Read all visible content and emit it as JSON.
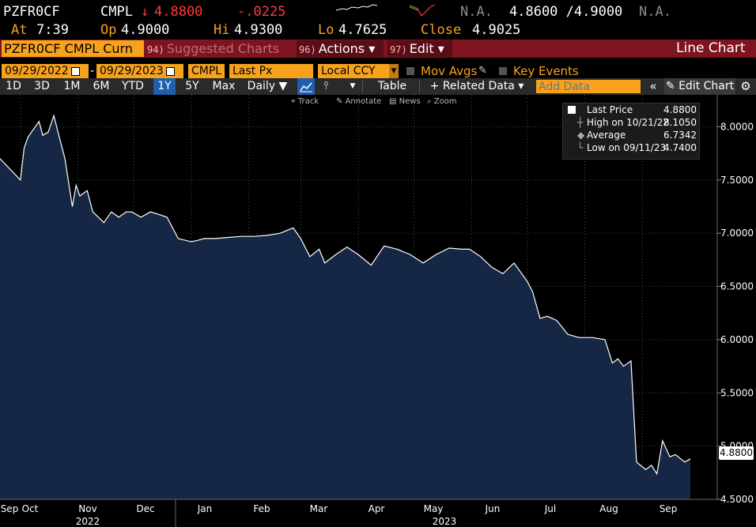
{
  "header": {
    "ticker": "PZFR0CF",
    "source": "CMPL",
    "arrow": "↓",
    "last": "4.8800",
    "change": "-.0225",
    "bid_na": "N.A.",
    "bid_ask": "4.8600 /4.9000",
    "ask_na": "N.A.",
    "at_label": "At",
    "at_time": "7:39",
    "op_label": "Op",
    "op_value": "4.9000",
    "hi_label": "Hi",
    "hi_value": "4.9300",
    "lo_label": "Lo",
    "lo_value": "4.7625",
    "close_label": "Close",
    "close_value": "4.9025"
  },
  "actionbar": {
    "security": "PZFR0CF CMPL Curn",
    "suggested_num": "94)",
    "suggested": "Suggested Charts",
    "actions_num": "96)",
    "actions": "Actions ▾",
    "edit_num": "97)",
    "edit": "Edit ▾",
    "title": "Line Chart"
  },
  "controls": {
    "start_date": "09/29/2022",
    "end_date": "09/29/2023",
    "source": "CMPL",
    "field": "Last Px",
    "currency": "Local CCY",
    "mov_avgs": "Mov Avgs",
    "key_events": "Key Events"
  },
  "toolbar": {
    "ranges": [
      "1D",
      "3D",
      "1M",
      "6M",
      "YTD",
      "1Y",
      "5Y",
      "Max"
    ],
    "selected_range": "1Y",
    "frequency": "Daily ▼",
    "table": "Table",
    "related": "+ Related Data ▾",
    "add_data_placeholder": "Add Data",
    "collapse": "«",
    "edit_chart": "✎ Edit Chart",
    "gear": "⚙"
  },
  "chart_tools": [
    "Track",
    "Annotate",
    "News",
    "Zoom"
  ],
  "legend": {
    "last_label": "Last Price",
    "last_value": "4.8800",
    "high_label": "High on 10/21/22",
    "high_value": "8.1050",
    "avg_label": "Average",
    "avg_value": "6.7342",
    "low_label": "Low on 09/11/23",
    "low_value": "4.7400"
  },
  "last_tag": "4.8800",
  "colors": {
    "background": "#000000",
    "area_fill": "#152744",
    "line": "#ffffff",
    "accent_orange": "#f7a21c",
    "down_red": "#ff3b3b",
    "bar_red": "#7d1420",
    "selected_blue": "#1f5fae"
  },
  "chart_data": {
    "type": "area",
    "title": "",
    "xlabel": "",
    "ylabel": "",
    "ylim": [
      4.5,
      8.3
    ],
    "y_ticks": [
      "8.0000",
      "7.5000",
      "7.0000",
      "6.5000",
      "6.0000",
      "5.5000",
      "5.0000",
      "4.5000"
    ],
    "x_ticks": [
      "Sep",
      "Oct",
      "Nov",
      "Dec",
      "Jan",
      "Feb",
      "Mar",
      "Apr",
      "May",
      "Jun",
      "Jul",
      "Aug",
      "Sep"
    ],
    "x_years": [
      "2022",
      "2023"
    ],
    "series": [
      {
        "name": "Last Price",
        "x": [
          "2022-09-29",
          "2022-10-03",
          "2022-10-05",
          "2022-10-07",
          "2022-10-11",
          "2022-10-13",
          "2022-10-15",
          "2022-10-18",
          "2022-10-21",
          "2022-10-24",
          "2022-10-27",
          "2022-10-31",
          "2022-11-02",
          "2022-11-04",
          "2022-11-08",
          "2022-11-11",
          "2022-11-14",
          "2022-11-17",
          "2022-11-21",
          "2022-11-25",
          "2022-11-29",
          "2022-12-02",
          "2022-12-07",
          "2022-12-12",
          "2022-12-16",
          "2022-12-21",
          "2022-12-27",
          "2023-01-03",
          "2023-01-06",
          "2023-01-10",
          "2023-01-16",
          "2023-01-23",
          "2023-01-30",
          "2023-02-06",
          "2023-02-13",
          "2023-02-20",
          "2023-02-27",
          "2023-03-03",
          "2023-03-08",
          "2023-03-13",
          "2023-03-16",
          "2023-03-22",
          "2023-03-28",
          "2023-04-03",
          "2023-04-10",
          "2023-04-17",
          "2023-04-24",
          "2023-05-01",
          "2023-05-08",
          "2023-05-15",
          "2023-05-22",
          "2023-05-29",
          "2023-06-02",
          "2023-06-08",
          "2023-06-14",
          "2023-06-20",
          "2023-06-26",
          "2023-07-03",
          "2023-07-06",
          "2023-07-10",
          "2023-07-14",
          "2023-07-19",
          "2023-07-25",
          "2023-07-31",
          "2023-08-07",
          "2023-08-14",
          "2023-08-18",
          "2023-08-21",
          "2023-08-24",
          "2023-08-28",
          "2023-08-31",
          "2023-09-05",
          "2023-09-08",
          "2023-09-11",
          "2023-09-14",
          "2023-09-18",
          "2023-09-21",
          "2023-09-26",
          "2023-09-29"
        ],
        "y": [
          7.7,
          7.5,
          7.8,
          7.9,
          8.0,
          8.05,
          7.92,
          7.95,
          8.105,
          7.9,
          7.7,
          7.25,
          7.45,
          7.35,
          7.4,
          7.2,
          7.15,
          7.1,
          7.2,
          7.15,
          7.2,
          7.2,
          7.15,
          7.2,
          7.18,
          7.15,
          6.95,
          6.92,
          6.93,
          6.95,
          6.95,
          6.96,
          6.97,
          6.97,
          6.98,
          7.0,
          7.05,
          6.95,
          6.78,
          6.85,
          6.72,
          6.8,
          6.87,
          6.8,
          6.7,
          6.88,
          6.85,
          6.8,
          6.72,
          6.8,
          6.86,
          6.85,
          6.85,
          6.78,
          6.68,
          6.62,
          6.72,
          6.55,
          6.45,
          6.2,
          6.22,
          6.18,
          6.05,
          6.02,
          6.02,
          6.0,
          5.78,
          5.82,
          5.75,
          5.8,
          4.85,
          4.78,
          4.82,
          4.74,
          5.05,
          4.9,
          4.92,
          4.85,
          4.88
        ]
      }
    ]
  }
}
